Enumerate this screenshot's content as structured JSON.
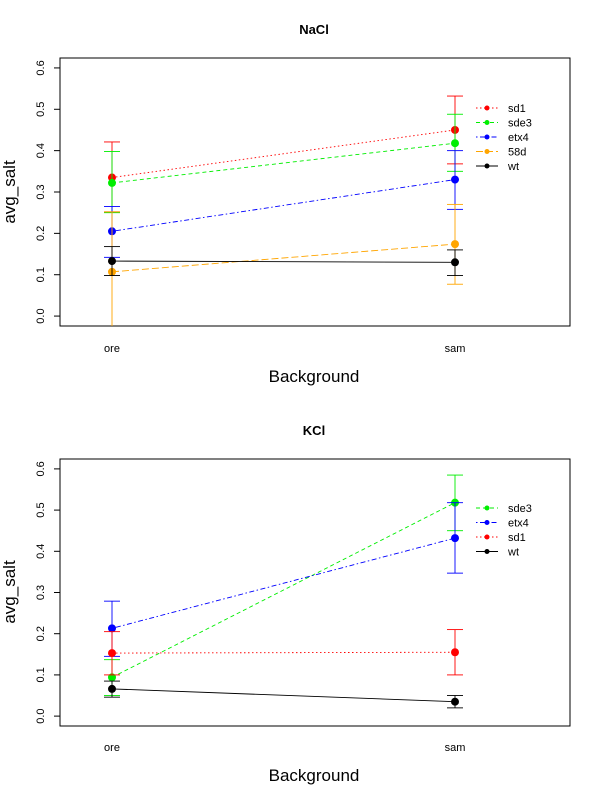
{
  "chart_data": [
    {
      "type": "line",
      "title": "NaCl",
      "xlabel": "Background",
      "ylabel": "avg_salt",
      "categories": [
        "ore",
        "sam"
      ],
      "ylim": [
        0.0,
        0.6
      ],
      "yticks": [
        0.0,
        0.1,
        0.2,
        0.3,
        0.4,
        0.5,
        0.6
      ],
      "ytick_labels": [
        "0.0",
        "0.1",
        "0.2",
        "0.3",
        "0.4",
        "0.5",
        "0.6"
      ],
      "grid": false,
      "legend_position": "right",
      "series": [
        {
          "name": "sd1",
          "color": "#ff0000",
          "dash": "dot",
          "values": [
            0.335,
            0.45
          ],
          "lower": [
            0.252,
            0.368
          ],
          "upper": [
            0.421,
            0.532
          ]
        },
        {
          "name": "sde3",
          "color": "#00ee00",
          "dash": "dash",
          "values": [
            0.322,
            0.418
          ],
          "lower": [
            0.25,
            0.35
          ],
          "upper": [
            0.398,
            0.488
          ]
        },
        {
          "name": "etx4",
          "color": "#0000ff",
          "dash": "dashdot",
          "values": [
            0.205,
            0.33
          ],
          "lower": [
            0.142,
            0.258
          ],
          "upper": [
            0.265,
            0.4
          ]
        },
        {
          "name": "58d",
          "color": "#ffa500",
          "dash": "longdash",
          "values": [
            0.107,
            0.174
          ],
          "lower": [
            -0.04,
            0.077
          ],
          "upper": [
            0.252,
            0.27
          ]
        },
        {
          "name": "wt",
          "color": "#000000",
          "dash": "solid",
          "values": [
            0.133,
            0.13
          ],
          "lower": [
            0.098,
            0.098
          ],
          "upper": [
            0.168,
            0.16
          ]
        }
      ]
    },
    {
      "type": "line",
      "title": "KCl",
      "xlabel": "Background",
      "ylabel": "avg_salt",
      "categories": [
        "ore",
        "sam"
      ],
      "ylim": [
        0.0,
        0.6
      ],
      "yticks": [
        0.0,
        0.1,
        0.2,
        0.3,
        0.4,
        0.5,
        0.6
      ],
      "ytick_labels": [
        "0.0",
        "0.1",
        "0.2",
        "0.3",
        "0.4",
        "0.5",
        "0.6"
      ],
      "grid": false,
      "legend_position": "right",
      "series": [
        {
          "name": "sde3",
          "color": "#00ee00",
          "dash": "dash",
          "values": [
            0.094,
            0.518
          ],
          "lower": [
            0.05,
            0.45
          ],
          "upper": [
            0.137,
            0.585
          ]
        },
        {
          "name": "etx4",
          "color": "#0000ff",
          "dash": "dashdot",
          "values": [
            0.213,
            0.432
          ],
          "lower": [
            0.145,
            0.347
          ],
          "upper": [
            0.279,
            0.518
          ]
        },
        {
          "name": "sd1",
          "color": "#ff0000",
          "dash": "dot",
          "values": [
            0.153,
            0.155
          ],
          "lower": [
            0.1,
            0.1
          ],
          "upper": [
            0.205,
            0.21
          ]
        },
        {
          "name": "wt",
          "color": "#000000",
          "dash": "solid",
          "values": [
            0.066,
            0.035
          ],
          "lower": [
            0.046,
            0.02
          ],
          "upper": [
            0.085,
            0.05
          ]
        }
      ]
    }
  ]
}
